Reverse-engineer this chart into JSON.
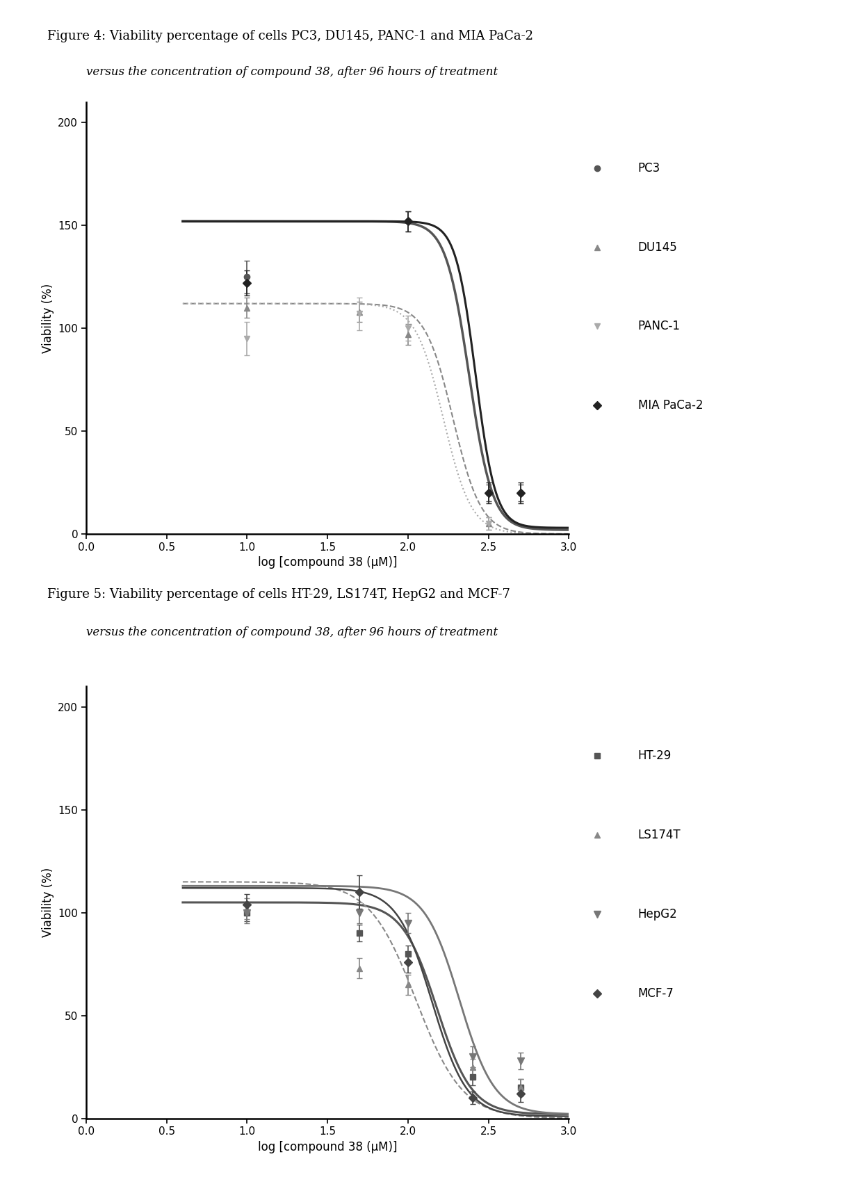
{
  "fig4": {
    "title_line1": "Figure 4: Viability percentage of cells PC3, DU145, PANC-1 and MIA PaCa-2",
    "title_line2": "versus the concentration of compound 38, after 96 hours of treatment",
    "xlabel": "log [compound 38 (μM)]",
    "ylabel": "Viability (%)",
    "xlim": [
      0.0,
      3.0
    ],
    "ylim": [
      0,
      210
    ],
    "yticks": [
      0,
      50,
      100,
      150,
      200
    ],
    "xticks": [
      0.0,
      0.5,
      1.0,
      1.5,
      2.0,
      2.5,
      3.0
    ],
    "series": [
      {
        "label": "PC3",
        "marker": "o",
        "color": "#555555",
        "linestyle": "-",
        "linewidth": 2.5,
        "markersize": 6,
        "data_x": [
          1.0,
          2.0,
          2.5,
          2.7
        ],
        "data_y": [
          125,
          152,
          20,
          20
        ],
        "yerr": [
          8,
          5,
          4,
          4
        ],
        "curve_top": 152,
        "curve_bottom": 2,
        "curve_ec50": 2.38,
        "curve_hill": 6
      },
      {
        "label": "DU145",
        "marker": "^",
        "color": "#888888",
        "linestyle": "--",
        "linewidth": 1.5,
        "markersize": 6,
        "data_x": [
          1.0,
          1.7,
          2.0,
          2.5
        ],
        "data_y": [
          110,
          108,
          97,
          5
        ],
        "yerr": [
          5,
          5,
          5,
          3
        ],
        "curve_top": 112,
        "curve_bottom": 0,
        "curve_ec50": 2.28,
        "curve_hill": 5
      },
      {
        "label": "PANC-1",
        "marker": "v",
        "color": "#aaaaaa",
        "linestyle": ":",
        "linewidth": 1.5,
        "markersize": 6,
        "data_x": [
          1.0,
          1.7,
          2.0,
          2.5
        ],
        "data_y": [
          95,
          107,
          100,
          5
        ],
        "yerr": [
          8,
          8,
          6,
          3
        ],
        "curve_top": 112,
        "curve_bottom": 0,
        "curve_ec50": 2.22,
        "curve_hill": 5
      },
      {
        "label": "MIA PaCa-2",
        "marker": "D",
        "color": "#222222",
        "linestyle": "-",
        "linewidth": 2.2,
        "markersize": 6,
        "data_x": [
          1.0,
          2.0,
          2.5,
          2.7
        ],
        "data_y": [
          122,
          152,
          20,
          20
        ],
        "yerr": [
          6,
          5,
          5,
          5
        ],
        "curve_top": 152,
        "curve_bottom": 3,
        "curve_ec50": 2.42,
        "curve_hill": 7
      }
    ]
  },
  "fig5": {
    "title_line1": "Figure 5: Viability percentage of cells HT-29, LS174T, HepG2 and MCF-7",
    "title_line2": "versus the concentration of compound 38, after 96 hours of treatment",
    "xlabel": "log [compound 38 (μM)]",
    "ylabel": "Viability (%)",
    "xlim": [
      0.0,
      3.0
    ],
    "ylim": [
      0,
      210
    ],
    "yticks": [
      0,
      50,
      100,
      150,
      200
    ],
    "xticks": [
      0.0,
      0.5,
      1.0,
      1.5,
      2.0,
      2.5,
      3.0
    ],
    "series": [
      {
        "label": "HT-29",
        "marker": "s",
        "color": "#555555",
        "linestyle": "-",
        "linewidth": 2.2,
        "markersize": 6,
        "data_x": [
          1.0,
          1.7,
          2.0,
          2.4,
          2.7
        ],
        "data_y": [
          100,
          90,
          80,
          20,
          15
        ],
        "yerr": [
          4,
          4,
          4,
          4,
          4
        ],
        "curve_top": 105,
        "curve_bottom": 2,
        "curve_ec50": 2.18,
        "curve_hill": 4
      },
      {
        "label": "LS174T",
        "marker": "^",
        "color": "#888888",
        "linestyle": "--",
        "linewidth": 1.5,
        "markersize": 6,
        "data_x": [
          1.0,
          1.7,
          2.0,
          2.4,
          2.7
        ],
        "data_y": [
          102,
          73,
          65,
          25,
          15
        ],
        "yerr": [
          5,
          5,
          5,
          4,
          4
        ],
        "curve_top": 115,
        "curve_bottom": 0,
        "curve_ec50": 2.05,
        "curve_hill": 3
      },
      {
        "label": "HepG2",
        "marker": "v",
        "color": "#777777",
        "linestyle": "-",
        "linewidth": 2.0,
        "markersize": 7,
        "data_x": [
          1.0,
          1.7,
          2.0,
          2.4,
          2.7
        ],
        "data_y": [
          100,
          100,
          95,
          30,
          28
        ],
        "yerr": [
          5,
          5,
          5,
          5,
          4
        ],
        "curve_top": 113,
        "curve_bottom": 2,
        "curve_ec50": 2.32,
        "curve_hill": 4
      },
      {
        "label": "MCF-7",
        "marker": "D",
        "color": "#444444",
        "linestyle": "-",
        "linewidth": 1.8,
        "markersize": 6,
        "data_x": [
          1.0,
          1.7,
          2.0,
          2.4,
          2.7
        ],
        "data_y": [
          104,
          110,
          76,
          10,
          12
        ],
        "yerr": [
          5,
          8,
          5,
          3,
          4
        ],
        "curve_top": 112,
        "curve_bottom": 1,
        "curve_ec50": 2.15,
        "curve_hill": 4
      }
    ]
  },
  "background_color": "#ffffff",
  "text_color": "#000000",
  "title_fontsize": 13,
  "subtitle_fontsize": 12,
  "axis_label_fontsize": 12,
  "tick_fontsize": 11,
  "legend_fontsize": 12
}
